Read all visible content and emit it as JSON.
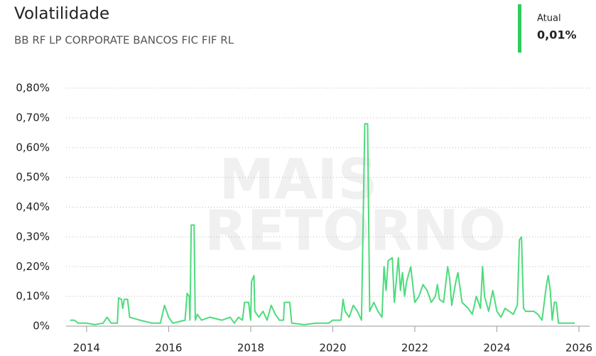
{
  "header": {
    "title": "Volatilidade",
    "subtitle": "BB RF LP CORPORATE BANCOS FIC FIF RL",
    "current_label": "Atual",
    "current_value": "0,01%"
  },
  "watermark": [
    "MAIS",
    "RETORNO"
  ],
  "chart_data": {
    "type": "line",
    "color": "#4ddb7c",
    "grid": true,
    "xlim": [
      2013.5,
      2026.26
    ],
    "xticks": [
      2014,
      2016,
      2018,
      2020,
      2022,
      2024,
      2026
    ],
    "ylim": [
      0,
      0.8
    ],
    "yticks": [
      {
        "value": 0,
        "label": "0%"
      },
      {
        "value": 0.1,
        "label": "0,10%"
      },
      {
        "value": 0.2,
        "label": "0,20%"
      },
      {
        "value": 0.3,
        "label": "0,30%"
      },
      {
        "value": 0.4,
        "label": "0,40%"
      },
      {
        "value": 0.5,
        "label": "0,50%"
      },
      {
        "value": 0.6,
        "label": "0,60%"
      },
      {
        "value": 0.7,
        "label": "0,70%"
      },
      {
        "value": 0.8,
        "label": "0,80%"
      }
    ],
    "x": [
      2013.6,
      2013.7,
      2013.8,
      2014.0,
      2014.2,
      2014.4,
      2014.5,
      2014.6,
      2014.75,
      2014.78,
      2014.85,
      2014.88,
      2014.92,
      2015.0,
      2015.05,
      2015.3,
      2015.6,
      2015.8,
      2015.9,
      2016.0,
      2016.1,
      2016.4,
      2016.45,
      2016.5,
      2016.52,
      2016.55,
      2016.62,
      2016.65,
      2016.7,
      2016.8,
      2017.0,
      2017.3,
      2017.5,
      2017.6,
      2017.7,
      2017.8,
      2017.85,
      2017.95,
      2018.0,
      2018.02,
      2018.08,
      2018.1,
      2018.2,
      2018.3,
      2018.4,
      2018.5,
      2018.6,
      2018.7,
      2018.8,
      2018.82,
      2018.95,
      2019.0,
      2019.3,
      2019.6,
      2019.9,
      2020.0,
      2020.2,
      2020.25,
      2020.3,
      2020.4,
      2020.5,
      2020.6,
      2020.7,
      2020.78,
      2020.85,
      2020.9,
      2021.0,
      2021.1,
      2021.2,
      2021.25,
      2021.3,
      2021.35,
      2021.45,
      2021.5,
      2021.6,
      2021.65,
      2021.7,
      2021.75,
      2021.8,
      2021.9,
      2022.0,
      2022.1,
      2022.2,
      2022.3,
      2022.4,
      2022.5,
      2022.55,
      2022.6,
      2022.7,
      2022.8,
      2022.85,
      2022.9,
      2023.0,
      2023.05,
      2023.15,
      2023.3,
      2023.4,
      2023.5,
      2023.6,
      2023.65,
      2023.7,
      2023.8,
      2023.9,
      2024.0,
      2024.1,
      2024.2,
      2024.3,
      2024.4,
      2024.5,
      2024.55,
      2024.6,
      2024.65,
      2024.7,
      2024.9,
      2025.0,
      2025.1,
      2025.2,
      2025.25,
      2025.3,
      2025.35,
      2025.4,
      2025.45,
      2025.5,
      2025.8,
      2025.9
    ],
    "values": [
      0.02,
      0.02,
      0.01,
      0.01,
      0.005,
      0.01,
      0.03,
      0.01,
      0.01,
      0.095,
      0.09,
      0.06,
      0.09,
      0.09,
      0.03,
      0.02,
      0.01,
      0.01,
      0.07,
      0.03,
      0.01,
      0.02,
      0.11,
      0.1,
      0.02,
      0.34,
      0.34,
      0.02,
      0.04,
      0.02,
      0.03,
      0.02,
      0.03,
      0.01,
      0.03,
      0.02,
      0.08,
      0.08,
      0.02,
      0.15,
      0.17,
      0.05,
      0.03,
      0.05,
      0.02,
      0.07,
      0.04,
      0.02,
      0.02,
      0.08,
      0.08,
      0.01,
      0.005,
      0.01,
      0.01,
      0.02,
      0.02,
      0.09,
      0.05,
      0.03,
      0.07,
      0.05,
      0.02,
      0.68,
      0.68,
      0.05,
      0.08,
      0.05,
      0.03,
      0.2,
      0.12,
      0.22,
      0.23,
      0.08,
      0.23,
      0.12,
      0.18,
      0.1,
      0.15,
      0.2,
      0.08,
      0.1,
      0.14,
      0.12,
      0.08,
      0.1,
      0.14,
      0.09,
      0.08,
      0.2,
      0.16,
      0.07,
      0.15,
      0.18,
      0.08,
      0.06,
      0.04,
      0.1,
      0.06,
      0.2,
      0.1,
      0.05,
      0.12,
      0.05,
      0.03,
      0.06,
      0.05,
      0.04,
      0.07,
      0.29,
      0.3,
      0.06,
      0.05,
      0.05,
      0.04,
      0.02,
      0.13,
      0.17,
      0.12,
      0.02,
      0.08,
      0.08,
      0.01,
      0.01,
      0.01
    ]
  }
}
